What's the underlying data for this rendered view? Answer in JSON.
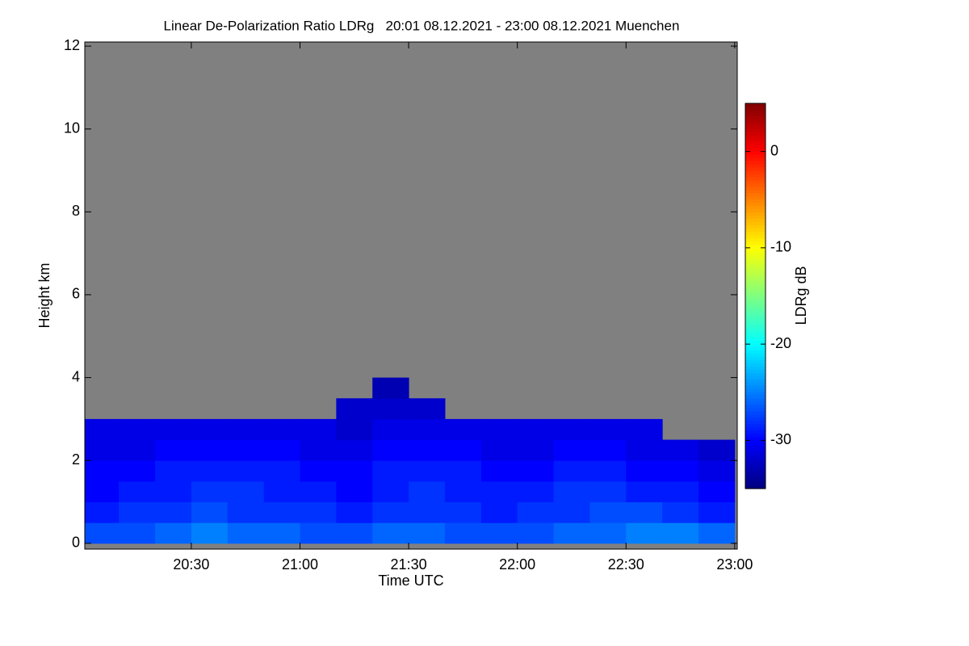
{
  "chart_data": {
    "type": "heatmap",
    "title": "Linear De-Polarization Ratio LDRg   20:01 08.12.2021 - 23:00 08.12.2021 Muenchen",
    "xlabel": "Time UTC",
    "ylabel": "Height km",
    "colorbar_label": "LDRg dB",
    "xlim": [
      1200.6,
      1380.7
    ],
    "xticks": [
      {
        "value": 1230,
        "label": "20:30"
      },
      {
        "value": 1260,
        "label": "21:00"
      },
      {
        "value": 1290,
        "label": "21:30"
      },
      {
        "value": 1320,
        "label": "22:00"
      },
      {
        "value": 1350,
        "label": "22:30"
      },
      {
        "value": 1380,
        "label": "23:00"
      }
    ],
    "ylim": [
      -0.14,
      12.1
    ],
    "yticks": [
      0,
      2,
      4,
      6,
      8,
      10,
      12
    ],
    "zlim": [
      -35,
      5
    ],
    "zticks": [
      0,
      -10,
      -20,
      -30
    ],
    "background": "#808080",
    "x": [
      1200,
      1210,
      1220,
      1230,
      1240,
      1250,
      1260,
      1270,
      1280,
      1290,
      1300,
      1310,
      1320,
      1330,
      1340,
      1350,
      1360,
      1370
    ],
    "y": [
      0,
      0.5,
      1,
      1.5,
      2,
      2.5,
      3,
      3.5
    ],
    "z": [
      [
        -27,
        -27,
        -26,
        -25,
        -26,
        -26,
        -27,
        -27,
        -26,
        -26,
        -27,
        -27,
        -27,
        -26,
        -26,
        -25,
        -25,
        -26
      ],
      [
        -29,
        -28,
        -28,
        -27,
        -28,
        -28,
        -28,
        -29,
        -28,
        -28,
        -28,
        -29,
        -28,
        -28,
        -27,
        -27,
        -28,
        -29
      ],
      [
        -30,
        -29,
        -29,
        -28,
        -28,
        -29,
        -29,
        -30,
        -29,
        -28,
        -29,
        -29,
        -29,
        -28,
        -28,
        -29,
        -29,
        -30
      ],
      [
        -30,
        -30,
        -29,
        -29,
        -29,
        -29,
        -30,
        -30,
        -29,
        -29,
        -29,
        -30,
        -30,
        -29,
        -29,
        -30,
        -30,
        -31
      ],
      [
        -31,
        -31,
        -30,
        -30,
        -30,
        -30,
        -31,
        -31,
        -30,
        -30,
        -30,
        -31,
        -31,
        -30,
        -30,
        -31,
        -31,
        -32
      ],
      [
        -31,
        -31,
        -31,
        -31,
        -31,
        -31,
        -31,
        -32,
        -31,
        -31,
        -31,
        -31,
        -31,
        -31,
        -31,
        -31,
        null,
        null
      ],
      [
        null,
        null,
        null,
        null,
        null,
        null,
        null,
        -32,
        -32,
        -32,
        null,
        null,
        null,
        null,
        null,
        null,
        null,
        null
      ],
      [
        null,
        null,
        null,
        null,
        null,
        null,
        null,
        null,
        -33,
        null,
        null,
        null,
        null,
        null,
        null,
        null,
        null,
        null
      ]
    ]
  }
}
